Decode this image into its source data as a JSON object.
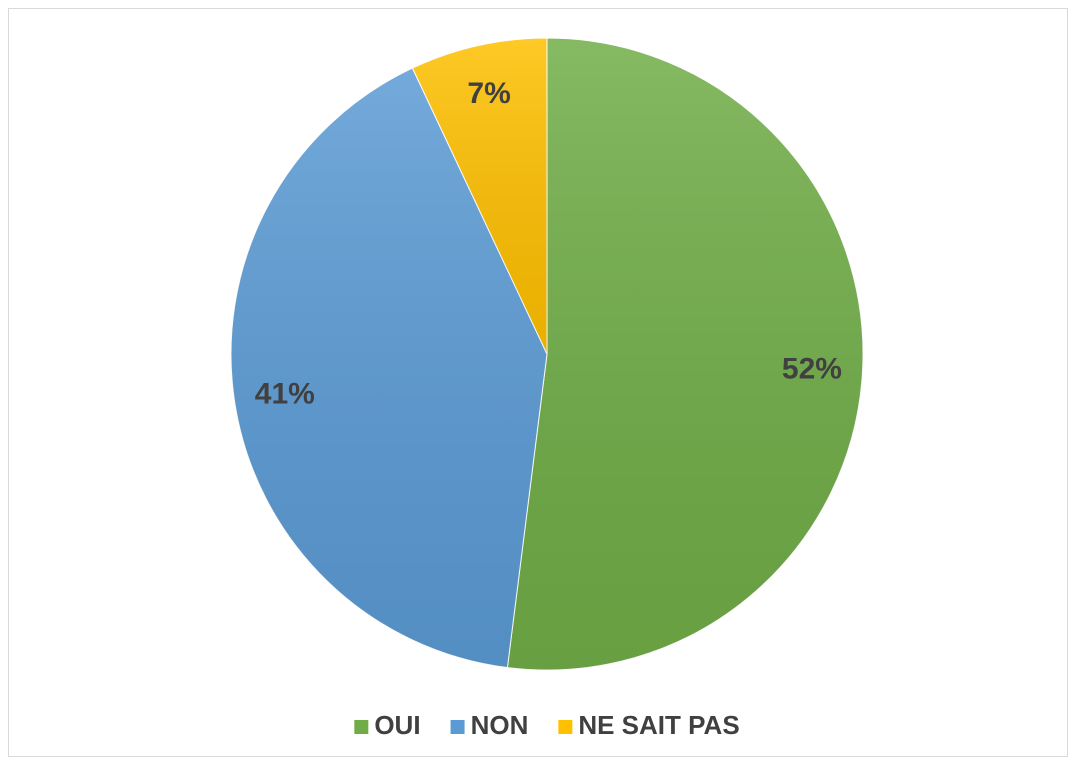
{
  "chart_data": {
    "type": "pie",
    "categories": [
      "OUI",
      "NON",
      "NE SAIT PAS"
    ],
    "values": [
      52,
      41,
      7
    ],
    "value_labels": [
      "52%",
      "41%",
      "7%"
    ],
    "colors": [
      "#70ad47",
      "#5b9bd5",
      "#ffc000"
    ],
    "legend": "bottom"
  }
}
